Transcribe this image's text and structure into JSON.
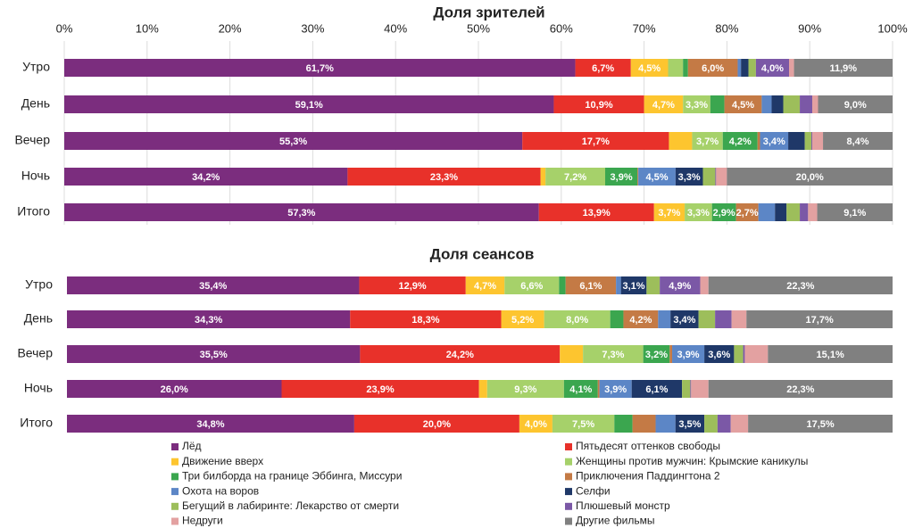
{
  "chart_data": [
    {
      "type": "bar",
      "title": "Доля зрителей",
      "categories": [
        "Утро",
        "День",
        "Вечер",
        "Ночь",
        "Итого"
      ],
      "xlim": [
        0,
        100
      ],
      "xticks": [
        {
          "value": 0,
          "label": "0%"
        },
        {
          "value": 10,
          "label": "10%"
        },
        {
          "value": 20,
          "label": "20%"
        },
        {
          "value": 30,
          "label": "30%"
        },
        {
          "value": 40,
          "label": "40%"
        },
        {
          "value": 50,
          "label": "50%"
        },
        {
          "value": 60,
          "label": "60%"
        },
        {
          "value": 70,
          "label": "70%"
        },
        {
          "value": 80,
          "label": "80%"
        },
        {
          "value": 90,
          "label": "90%"
        },
        {
          "value": 100,
          "label": "100%"
        }
      ],
      "grid": true,
      "series": [
        {
          "name": "Лёд",
          "color": "#7b2d7e",
          "values": [
            61.7,
            59.1,
            55.3,
            34.2,
            57.3
          ],
          "value_labels": [
            "61,7%",
            "59,1%",
            "55,3%",
            "34,2%",
            "57,3%"
          ]
        },
        {
          "name": "Пятьдесят оттенков свободы",
          "color": "#e8312a",
          "values": [
            6.7,
            10.9,
            17.7,
            23.3,
            13.9
          ],
          "value_labels": [
            "6,7%",
            "10,9%",
            "17,7%",
            "23,3%",
            "13,9%"
          ]
        },
        {
          "name": "Движение вверх",
          "color": "#fdc52f",
          "values": [
            4.5,
            4.7,
            2.8,
            0.6,
            3.7
          ],
          "value_labels": [
            "4,5%",
            "4,7%",
            null,
            null,
            "3,7%"
          ]
        },
        {
          "name": "Женщины против мужчин: Крымские каникулы",
          "color": "#a6d16a",
          "values": [
            1.8,
            3.3,
            3.7,
            7.2,
            3.3
          ],
          "value_labels": [
            null,
            "3,3%",
            "3,7%",
            "7,2%",
            "3,3%"
          ]
        },
        {
          "name": "Три билборда на границе Эббинга, Миссури",
          "color": "#3ba64f",
          "values": [
            0.6,
            1.7,
            4.2,
            3.9,
            2.9
          ],
          "value_labels": [
            null,
            null,
            "4,2%",
            "3,9%",
            "2,9%"
          ]
        },
        {
          "name": "Приключения Паддингтона 2",
          "color": "#c47a45",
          "values": [
            6.0,
            4.5,
            0.3,
            0.1,
            2.7
          ],
          "value_labels": [
            "6,0%",
            "4,5%",
            null,
            null,
            "2,7%"
          ]
        },
        {
          "name": "Охота на воров",
          "color": "#5c86c6",
          "values": [
            0.4,
            1.2,
            3.4,
            4.5,
            2.0
          ],
          "value_labels": [
            null,
            null,
            "3,4%",
            "4,5%",
            null
          ]
        },
        {
          "name": "Селфи",
          "color": "#1f3868",
          "values": [
            0.9,
            1.4,
            2.0,
            3.3,
            1.4
          ],
          "value_labels": [
            null,
            null,
            null,
            "3,3%",
            null
          ]
        },
        {
          "name": "Бегущий в лабиринте: Лекарство от смерти",
          "color": "#9dbe5b",
          "values": [
            0.9,
            2.0,
            0.8,
            1.5,
            1.6
          ],
          "value_labels": [
            null,
            null,
            null,
            null,
            null
          ]
        },
        {
          "name": "Плюшевый монстр",
          "color": "#7b58a6",
          "values": [
            4.0,
            1.5,
            0.1,
            0.1,
            1.0
          ],
          "value_labels": [
            "4,0%",
            null,
            null,
            null,
            null
          ]
        },
        {
          "name": "Недруги",
          "color": "#e3a1a1",
          "values": [
            0.6,
            0.7,
            1.3,
            1.3,
            1.1
          ],
          "value_labels": [
            null,
            null,
            null,
            null,
            null
          ]
        },
        {
          "name": "Другие фильмы",
          "color": "#808080",
          "values": [
            11.9,
            9.0,
            8.4,
            20.0,
            9.1
          ],
          "value_labels": [
            "11,9%",
            "9,0%",
            "8,4%",
            "20,0%",
            "9,1%"
          ]
        }
      ]
    },
    {
      "type": "bar",
      "title": "Доля сеансов",
      "categories": [
        "Утро",
        "День",
        "Вечер",
        "Ночь",
        "Итого"
      ],
      "xlim": [
        0,
        100
      ],
      "grid": false,
      "series": [
        {
          "values": [
            35.4,
            34.3,
            35.5,
            26.0,
            34.8
          ],
          "value_labels": [
            "35,4%",
            "34,3%",
            "35,5%",
            "26,0%",
            "34,8%"
          ]
        },
        {
          "values": [
            12.9,
            18.3,
            24.2,
            23.9,
            20.0
          ],
          "value_labels": [
            "12,9%",
            "18,3%",
            "24,2%",
            "23,9%",
            "20,0%"
          ]
        },
        {
          "values": [
            4.7,
            5.2,
            2.8,
            1.0,
            4.0
          ],
          "value_labels": [
            "4,7%",
            "5,2%",
            null,
            null,
            "4,0%"
          ]
        },
        {
          "values": [
            6.6,
            8.0,
            7.3,
            9.3,
            7.5
          ],
          "value_labels": [
            "6,6%",
            "8,0%",
            "7,3%",
            "9,3%",
            "7,5%"
          ]
        },
        {
          "values": [
            0.8,
            1.6,
            3.2,
            4.1,
            2.2
          ],
          "value_labels": [
            null,
            null,
            "3,2%",
            "4,1%",
            null
          ]
        },
        {
          "values": [
            6.1,
            4.2,
            0.3,
            0.2,
            2.8
          ],
          "value_labels": [
            "6,1%",
            "4,2%",
            null,
            null,
            null
          ]
        },
        {
          "values": [
            0.6,
            1.5,
            3.9,
            3.9,
            2.4
          ],
          "value_labels": [
            null,
            null,
            "3,9%",
            "3,9%",
            null
          ]
        },
        {
          "values": [
            3.1,
            3.4,
            3.6,
            6.1,
            3.5
          ],
          "value_labels": [
            "3,1%",
            "3,4%",
            "3,6%",
            "6,1%",
            "3,5%"
          ]
        },
        {
          "values": [
            1.6,
            2.0,
            1.1,
            1.0,
            1.6
          ],
          "value_labels": [
            null,
            null,
            null,
            null,
            null
          ]
        },
        {
          "values": [
            4.9,
            2.0,
            0.2,
            0.1,
            1.6
          ],
          "value_labels": [
            "4,9%",
            null,
            null,
            null,
            null
          ]
        },
        {
          "values": [
            1.0,
            1.8,
            2.8,
            2.1,
            2.1
          ],
          "value_labels": [
            null,
            null,
            null,
            null,
            null
          ]
        },
        {
          "values": [
            22.3,
            17.7,
            15.1,
            22.3,
            17.5
          ],
          "value_labels": [
            "22,3%",
            "17,7%",
            "15,1%",
            "22,3%",
            "17,5%"
          ]
        }
      ]
    }
  ]
}
